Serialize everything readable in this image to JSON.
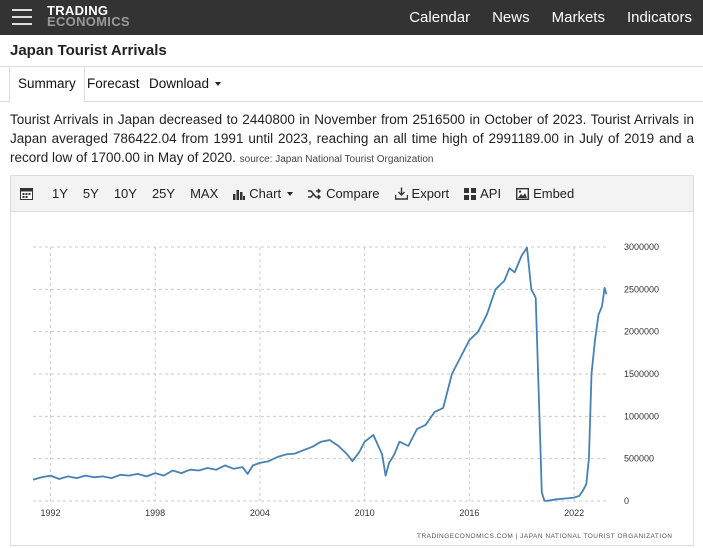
{
  "header": {
    "logo_line1": "TRADING",
    "logo_line2": "ECONOMICS",
    "nav": [
      "Calendar",
      "News",
      "Markets",
      "Indicators"
    ]
  },
  "page_title": "Japan Tourist Arrivals",
  "tabs": [
    "Summary",
    "Forecast",
    "Download"
  ],
  "description": {
    "text": "Tourist Arrivals in Japan decreased to 2440800 in November from 2516500 in October of 2023. Tourist Arrivals in Japan averaged 786422.04 from 1991 until 2023, reaching an all time high of 2991189.00 in July of 2019 and a record low of 1700.00 in May of 2020.",
    "source": "source: Japan National Tourist Organization"
  },
  "toolbar": {
    "ranges": [
      "1Y",
      "5Y",
      "10Y",
      "25Y",
      "MAX"
    ],
    "chart_label": "Chart",
    "compare_label": "Compare",
    "export_label": "Export",
    "api_label": "API",
    "embed_label": "Embed"
  },
  "chart_data": {
    "type": "line",
    "title": "",
    "xlabel": "",
    "ylabel": "",
    "x_ticks": [
      "1992",
      "1998",
      "2004",
      "2010",
      "2016",
      "2022"
    ],
    "y_ticks": [
      "0",
      "500000",
      "1000000",
      "1500000",
      "2000000",
      "2500000",
      "3000000"
    ],
    "ylim": [
      0,
      3000000
    ],
    "xlim": [
      1991,
      2024
    ],
    "grid": "horizontal dashed",
    "line_color": "#4682b4",
    "credit": "TRADINGECONOMICS.COM  |  JAPAN NATIONAL TOURIST ORGANIZATION",
    "series": [
      {
        "x": [
          1991.0,
          1991.5,
          1992.0,
          1992.5,
          1993.0,
          1993.5,
          1994.0,
          1994.5,
          1995.0,
          1995.5,
          1996.0,
          1996.5,
          1997.0,
          1997.5,
          1998.0,
          1998.5,
          1999.0,
          1999.5,
          2000.0,
          2000.5,
          2001.0,
          2001.5,
          2002.0,
          2002.5,
          2003.0,
          2003.3,
          2003.6,
          2004.0,
          2004.5,
          2005.0,
          2005.5,
          2006.0,
          2006.5,
          2007.0,
          2007.5,
          2008.0,
          2008.5,
          2009.0,
          2009.3,
          2009.7,
          2010.0,
          2010.5,
          2011.0,
          2011.2,
          2011.4,
          2011.7,
          2012.0,
          2012.5,
          2013.0,
          2013.5,
          2014.0,
          2014.5,
          2015.0,
          2015.5,
          2016.0,
          2016.5,
          2017.0,
          2017.5,
          2018.0,
          2018.3,
          2018.6,
          2019.0,
          2019.3,
          2019.55,
          2019.8,
          2020.0,
          2020.15,
          2020.3,
          2020.4,
          2020.5,
          2021.0,
          2021.5,
          2022.0,
          2022.3,
          2022.5,
          2022.7,
          2022.85,
          2023.0,
          2023.2,
          2023.4,
          2023.6,
          2023.75,
          2023.85
        ],
        "values": [
          250000,
          280000,
          300000,
          260000,
          290000,
          270000,
          300000,
          280000,
          290000,
          270000,
          310000,
          300000,
          320000,
          290000,
          330000,
          300000,
          360000,
          330000,
          370000,
          360000,
          390000,
          370000,
          420000,
          380000,
          400000,
          320000,
          420000,
          450000,
          470000,
          520000,
          550000,
          560000,
          600000,
          640000,
          700000,
          720000,
          650000,
          550000,
          470000,
          580000,
          700000,
          780000,
          550000,
          300000,
          450000,
          550000,
          700000,
          650000,
          850000,
          900000,
          1050000,
          1100000,
          1500000,
          1700000,
          1900000,
          2000000,
          2200000,
          2500000,
          2600000,
          2750000,
          2700000,
          2900000,
          2991189,
          2500000,
          2400000,
          1100000,
          100000,
          3000,
          1700,
          3000,
          20000,
          30000,
          40000,
          60000,
          120000,
          200000,
          500000,
          1500000,
          1900000,
          2200000,
          2300000,
          2516500,
          2440800
        ]
      }
    ]
  }
}
